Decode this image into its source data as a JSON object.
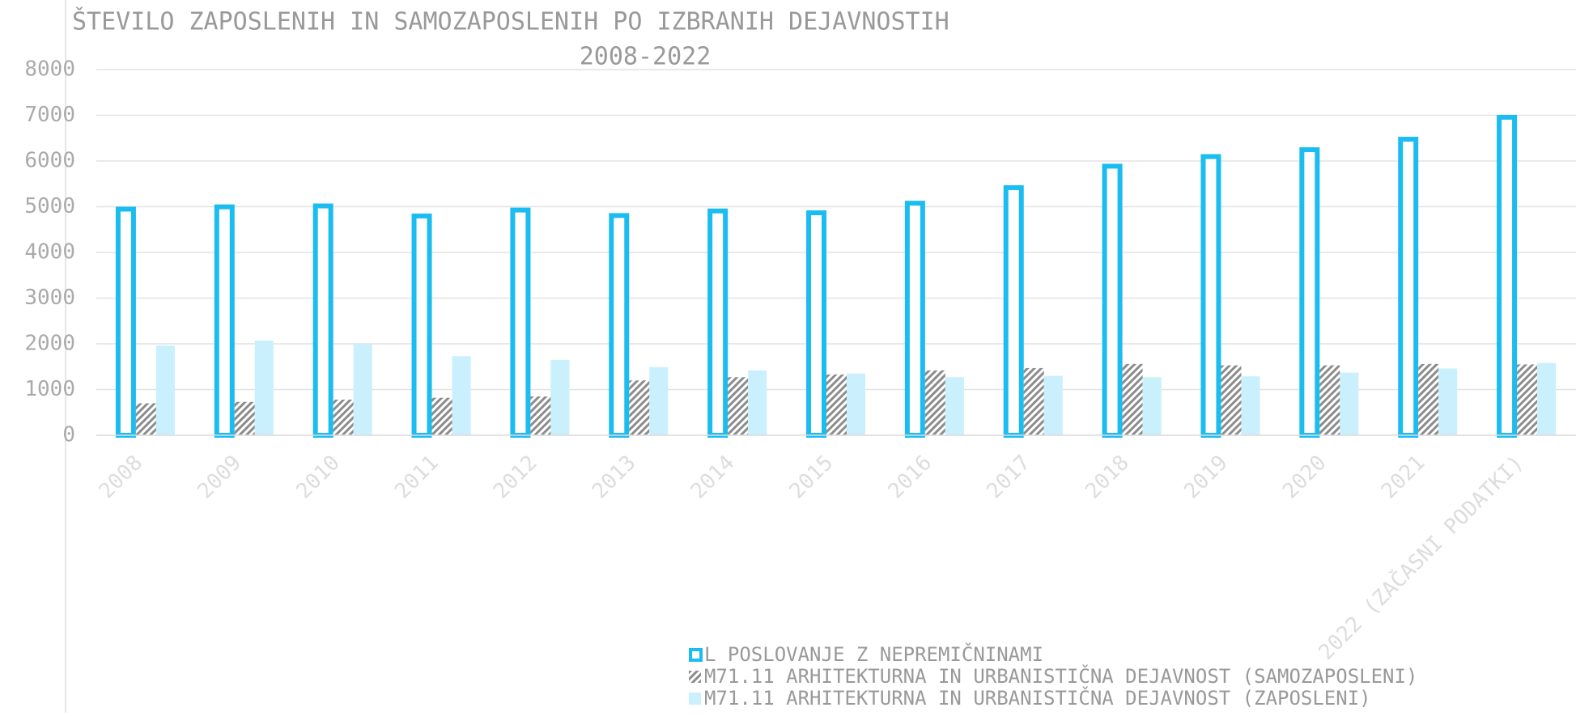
{
  "chart_data": {
    "type": "bar",
    "title": "ŠTEVILO ZAPOSLENIH IN SAMOZAPOSLENIH PO IZBRANIH DEJAVNOSTIH",
    "subtitle": "2008-2022",
    "categories": [
      "2008",
      "2009",
      "2010",
      "2011",
      "2012",
      "2013",
      "2014",
      "2015",
      "2016",
      "2017",
      "2018",
      "2019",
      "2020",
      "2021",
      "2022 (ZAČASNI PODATKI)"
    ],
    "series": [
      {
        "name": "L POSLOVANJE Z NEPREMIČNINAMI",
        "color": "#1bbcf0",
        "style": "outline",
        "values": [
          5000,
          5050,
          5070,
          4850,
          4980,
          4860,
          4960,
          4920,
          5130,
          5470,
          5940,
          6150,
          6300,
          6530,
          7010
        ]
      },
      {
        "name": "M71.11 ARHITEKTURNA IN URBANISTIČNA DEJAVNOST (SAMOZAPOSLENI)",
        "color": "#8c8c8c",
        "style": "hatch",
        "values": [
          700,
          730,
          780,
          820,
          850,
          1200,
          1270,
          1330,
          1420,
          1470,
          1560,
          1530,
          1530,
          1560,
          1550
        ]
      },
      {
        "name": "M71.11 ARHITEKTURNA IN URBANISTIČNA DEJAVNOST (ZAPOSLENI)",
        "color": "#c9f0fc",
        "style": "solid",
        "values": [
          1960,
          2070,
          2000,
          1730,
          1650,
          1490,
          1420,
          1350,
          1270,
          1300,
          1270,
          1290,
          1370,
          1460,
          1580
        ]
      }
    ],
    "ylim": [
      0,
      8000
    ],
    "yticks": [
      0,
      1000,
      2000,
      3000,
      4000,
      5000,
      6000,
      7000,
      8000
    ],
    "grid": true
  }
}
